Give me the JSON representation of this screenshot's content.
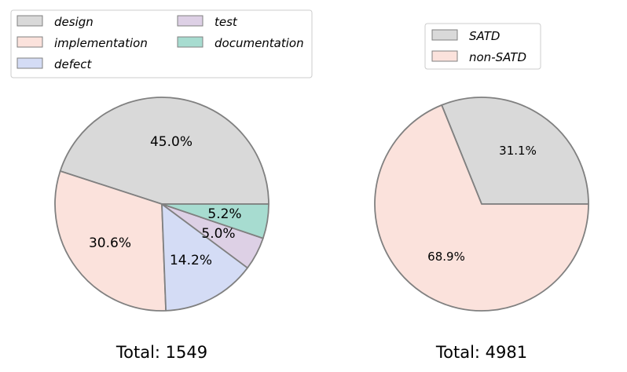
{
  "chart_data": [
    {
      "type": "pie",
      "title": "",
      "total_label": "Total: 1549",
      "slices": [
        {
          "label": "design",
          "value": 45.0,
          "text": "45.0%",
          "color": "#d9d9d9"
        },
        {
          "label": "implementation",
          "value": 30.6,
          "text": "30.6%",
          "color": "#fbe2dc"
        },
        {
          "label": "defect",
          "value": 14.2,
          "text": "14.2%",
          "color": "#d4dcf5"
        },
        {
          "label": "test",
          "value": 5.0,
          "text": "5.0%",
          "color": "#ddd0e5"
        },
        {
          "label": "documentation",
          "value": 5.2,
          "text": "5.2%",
          "color": "#a7dcd0"
        }
      ],
      "legend": [
        "design",
        "implementation",
        "defect",
        "test",
        "documentation"
      ],
      "legend_position": "top"
    },
    {
      "type": "pie",
      "title": "",
      "total_label": "Total: 4981",
      "slices": [
        {
          "label": "SATD",
          "value": 31.1,
          "text": "31.1%",
          "color": "#d9d9d9"
        },
        {
          "label": "non-SATD",
          "value": 68.9,
          "text": "68.9%",
          "color": "#fbe2dc"
        }
      ],
      "legend": [
        "SATD",
        "non-SATD"
      ],
      "legend_position": "top"
    }
  ]
}
